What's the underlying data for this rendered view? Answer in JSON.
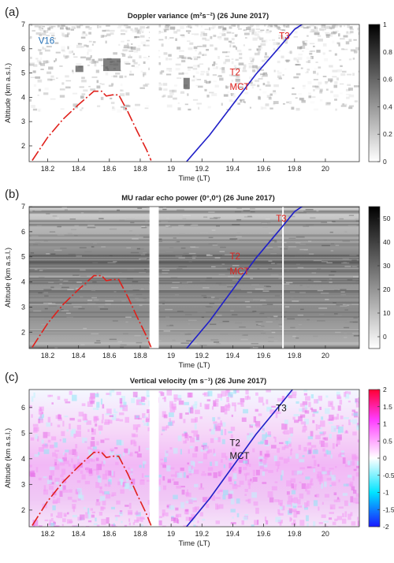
{
  "chart_data": [
    {
      "type": "heatmap",
      "panel_label": "(a)",
      "title": "Doppler variance (m²s⁻²) (26 June 2017)",
      "xlabel": "Time (LT)",
      "ylabel": "Altitude (km a.s.l.)",
      "xlim": [
        18.08,
        20.22
      ],
      "ylim": [
        1.35,
        7
      ],
      "xticks": [
        "18.2",
        "18.4",
        "18.6",
        "18.8",
        "19",
        "19.2",
        "19.4",
        "19.6",
        "19.8",
        "20"
      ],
      "yticks": [
        "2",
        "3",
        "4",
        "5",
        "6",
        "7"
      ],
      "data_gap": [
        18.86,
        18.92
      ],
      "colorbar": {
        "colormap": "grayscale (white to black)",
        "min": 0,
        "max": 1,
        "ticks": [
          "0",
          "0.2",
          "0.4",
          "0.6",
          "0.8",
          "1"
        ]
      },
      "annotations": [
        {
          "text": "V16",
          "x": 18.14,
          "y": 6.2,
          "color": "#1f6db5"
        },
        {
          "text": "T3",
          "x": 19.7,
          "y": 6.4,
          "color": "#e0201b"
        },
        {
          "text": "T2",
          "x": 19.38,
          "y": 4.9,
          "color": "#e0201b"
        },
        {
          "text": "MCT",
          "x": 19.38,
          "y": 4.3,
          "color": "#e0201b"
        }
      ]
    },
    {
      "type": "heatmap",
      "panel_label": "(b)",
      "title": "MU radar echo power (0°,0°) (26 June 2017)",
      "xlabel": "Time (LT)",
      "ylabel": "Altitude (km a.s.l.)",
      "xlim": [
        18.08,
        20.22
      ],
      "ylim": [
        1.35,
        7
      ],
      "xticks": [
        "18.2",
        "18.4",
        "18.6",
        "18.8",
        "19",
        "19.2",
        "19.4",
        "19.6",
        "19.8",
        "20"
      ],
      "yticks": [
        "2",
        "3",
        "4",
        "5",
        "6",
        "7"
      ],
      "data_gap": [
        18.86,
        18.92
      ],
      "colorbar": {
        "colormap": "grayscale (white to black)",
        "min": -5,
        "max": 55,
        "ticks": [
          "0",
          "10",
          "20",
          "30",
          "40",
          "50"
        ]
      },
      "annotations": [
        {
          "text": "T3",
          "x": 19.68,
          "y": 6.4,
          "color": "#e0201b"
        },
        {
          "text": "T2",
          "x": 19.38,
          "y": 4.9,
          "color": "#e0201b"
        },
        {
          "text": "MCT",
          "x": 19.38,
          "y": 4.3,
          "color": "#e0201b"
        }
      ]
    },
    {
      "type": "heatmap",
      "panel_label": "(c)",
      "title": "Vertical velocity (m s⁻¹) (26 June 2017)",
      "xlabel": "Time (LT)",
      "ylabel": "Altitude (km a.s.l.)",
      "xlim": [
        18.08,
        20.22
      ],
      "ylim": [
        1.35,
        6.7
      ],
      "xticks": [
        "18.2",
        "18.4",
        "18.6",
        "18.8",
        "19",
        "19.2",
        "19.4",
        "19.6",
        "19.8",
        "20"
      ],
      "yticks": [
        "2",
        "3",
        "4",
        "5",
        "6"
      ],
      "data_gap": [
        18.86,
        18.92
      ],
      "colorbar": {
        "colormap": "diverging blue-cyan-white-magenta-red",
        "min": -2,
        "max": 2,
        "ticks": [
          "-2",
          "-1.5",
          "-1",
          "-0.5",
          "0",
          "0.5",
          "1",
          "1.5",
          "2"
        ]
      },
      "annotations": [
        {
          "text": "T3",
          "x": 19.68,
          "y": 5.85,
          "color": "#111111"
        },
        {
          "text": "T2",
          "x": 19.38,
          "y": 4.5,
          "color": "#111111"
        },
        {
          "text": "MCT",
          "x": 19.38,
          "y": 4.0,
          "color": "#111111"
        }
      ]
    }
  ],
  "trajectories": [
    {
      "color": "#e0201b",
      "style": "dash-dot",
      "points": [
        [
          18.1,
          1.4
        ],
        [
          18.2,
          2.35
        ],
        [
          18.3,
          3.1
        ],
        [
          18.4,
          3.7
        ],
        [
          18.5,
          4.25
        ],
        [
          18.55,
          4.25
        ],
        [
          18.58,
          4.05
        ],
        [
          18.62,
          4.1
        ],
        [
          18.66,
          4.1
        ],
        [
          18.72,
          3.4
        ],
        [
          18.78,
          2.6
        ],
        [
          18.84,
          1.85
        ],
        [
          18.87,
          1.4
        ]
      ]
    },
    {
      "color": "#1f1fc8",
      "style": "solid",
      "points": [
        [
          19.1,
          1.35
        ],
        [
          19.25,
          2.45
        ],
        [
          19.4,
          3.7
        ],
        [
          19.55,
          4.95
        ],
        [
          19.7,
          6.05
        ],
        [
          19.8,
          6.8
        ],
        [
          19.86,
          7.05
        ]
      ]
    }
  ]
}
